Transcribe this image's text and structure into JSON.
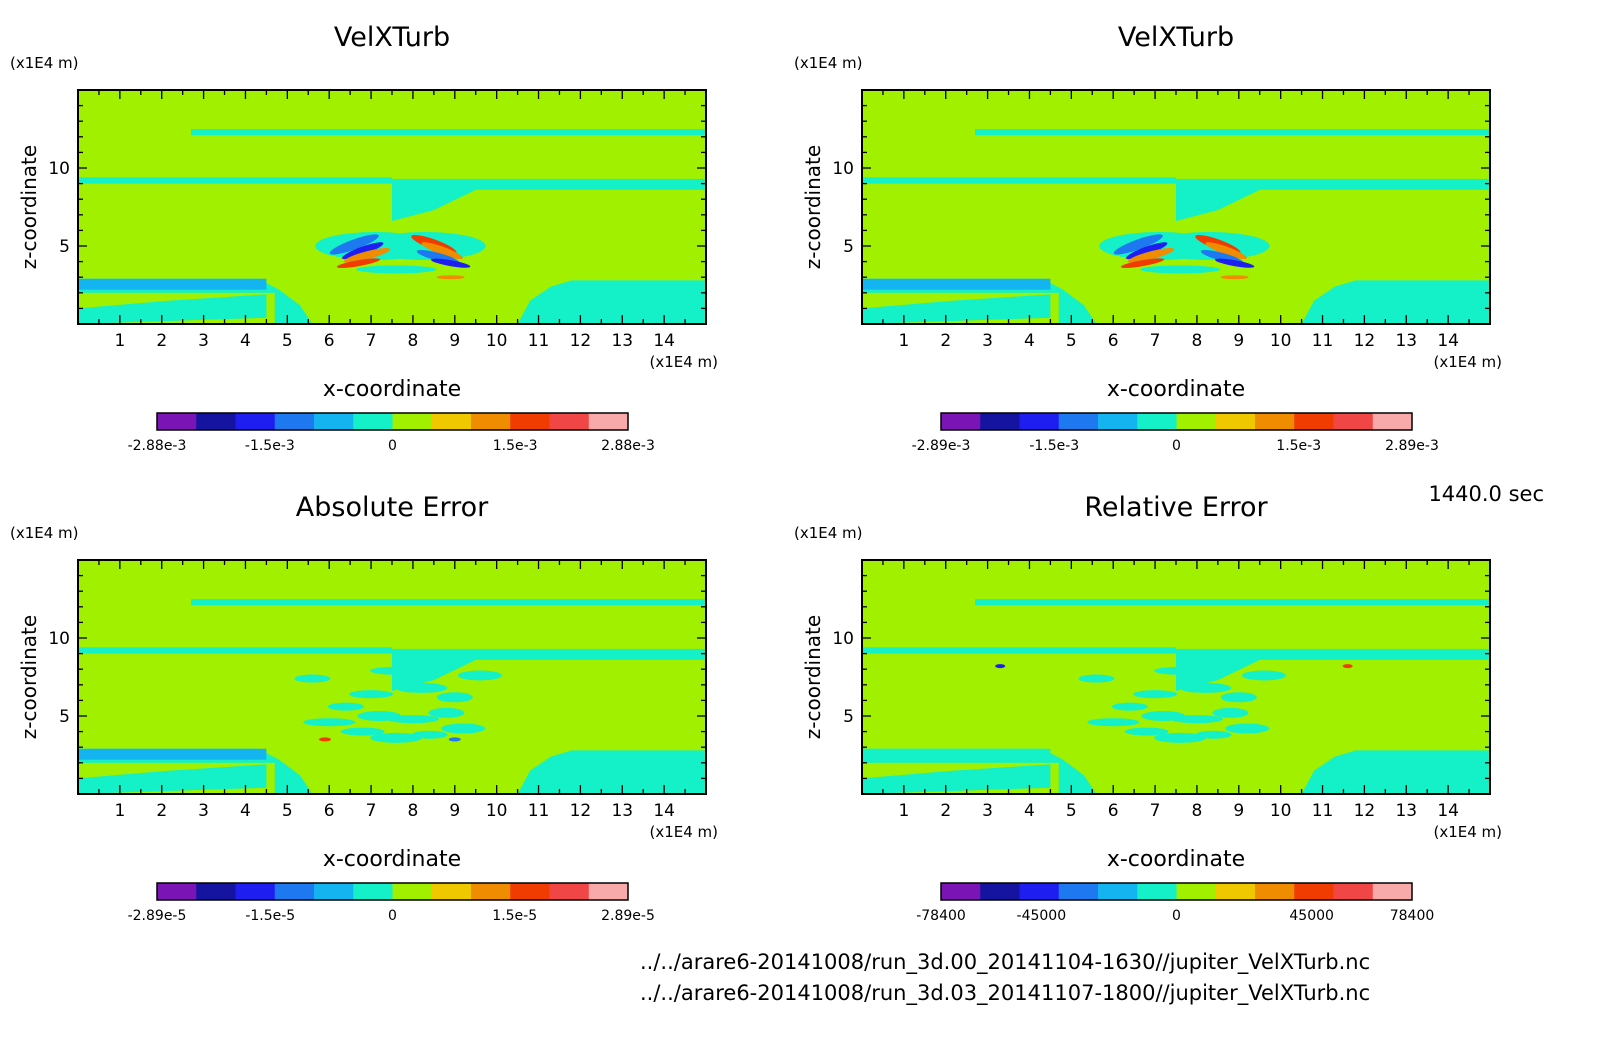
{
  "time_label": "1440.0 sec",
  "files": [
    "../../arare6-20141008/run_3d.00_20141104-1630//jupiter_VelXTurb.nc",
    "../../arare6-20141008/run_3d.03_20141107-1800//jupiter_VelXTurb.nc"
  ],
  "palette": [
    "#7a14b4",
    "#1414a0",
    "#1e1ef0",
    "#1e78f0",
    "#14b4f0",
    "#14f0c8",
    "#a0f000",
    "#f0c800",
    "#f08c00",
    "#f03c00",
    "#f04646",
    "#f8aaaa"
  ],
  "chart_data": [
    {
      "type": "heatmap",
      "title": "VelXTurb",
      "xlabel": "x-coordinate",
      "ylabel": "z-coordinate",
      "x_unit": "(x1E4 m)",
      "y_unit": "(x1E4 m)",
      "xlim": [
        0,
        15
      ],
      "ylim": [
        0,
        15
      ],
      "xticks": [
        1,
        2,
        3,
        4,
        5,
        6,
        7,
        8,
        9,
        10,
        11,
        12,
        13,
        14
      ],
      "yticks": [
        5,
        10
      ],
      "colorbar_ticks": [
        "-2.88e-3",
        "-1.5e-3",
        "0",
        "1.5e-3",
        "2.88e-3"
      ],
      "colorbar_range": [
        -0.00288,
        0.00288
      ]
    },
    {
      "type": "heatmap",
      "title": "VelXTurb",
      "xlabel": "x-coordinate",
      "ylabel": "z-coordinate",
      "x_unit": "(x1E4 m)",
      "y_unit": "(x1E4 m)",
      "xlim": [
        0,
        15
      ],
      "ylim": [
        0,
        15
      ],
      "xticks": [
        1,
        2,
        3,
        4,
        5,
        6,
        7,
        8,
        9,
        10,
        11,
        12,
        13,
        14
      ],
      "yticks": [
        5,
        10
      ],
      "colorbar_ticks": [
        "-2.89e-3",
        "-1.5e-3",
        "0",
        "1.5e-3",
        "2.89e-3"
      ],
      "colorbar_range": [
        -0.00289,
        0.00289
      ]
    },
    {
      "type": "heatmap",
      "title": "Absolute Error",
      "xlabel": "x-coordinate",
      "ylabel": "z-coordinate",
      "x_unit": "(x1E4 m)",
      "y_unit": "(x1E4 m)",
      "xlim": [
        0,
        15
      ],
      "ylim": [
        0,
        15
      ],
      "xticks": [
        1,
        2,
        3,
        4,
        5,
        6,
        7,
        8,
        9,
        10,
        11,
        12,
        13,
        14
      ],
      "yticks": [
        5,
        10
      ],
      "colorbar_ticks": [
        "-2.89e-5",
        "-1.5e-5",
        "0",
        "1.5e-5",
        "2.89e-5"
      ],
      "colorbar_range": [
        -2.89e-05,
        2.89e-05
      ]
    },
    {
      "type": "heatmap",
      "title": "Relative Error",
      "xlabel": "x-coordinate",
      "ylabel": "z-coordinate",
      "x_unit": "(x1E4 m)",
      "y_unit": "(x1E4 m)",
      "xlim": [
        0,
        15
      ],
      "ylim": [
        0,
        15
      ],
      "xticks": [
        1,
        2,
        3,
        4,
        5,
        6,
        7,
        8,
        9,
        10,
        11,
        12,
        13,
        14
      ],
      "yticks": [
        5,
        10
      ],
      "colorbar_ticks": [
        "-78400",
        "-45000",
        "0",
        "45000",
        "78400"
      ],
      "colorbar_range": [
        -78400,
        78400
      ]
    }
  ]
}
